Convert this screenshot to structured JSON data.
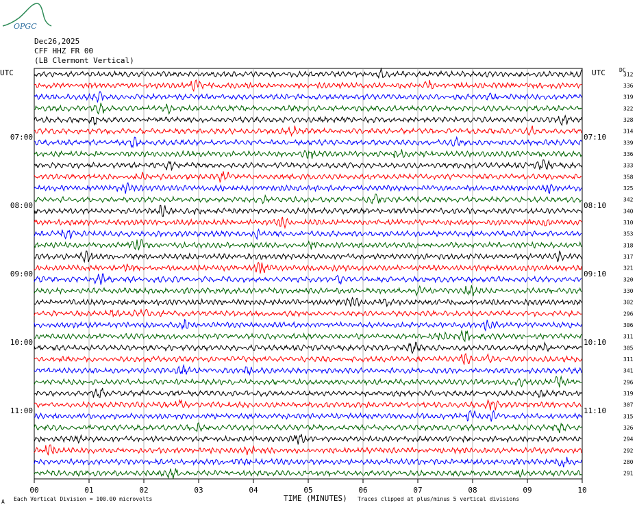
{
  "header": {
    "date": "Dec26,2025",
    "station": "CFF HHZ FR 00",
    "location": "(LB  Clermont Vertical)"
  },
  "logo": {
    "text": "OPGC",
    "color": "#2f6fa0",
    "mountain_color": "#2e8b57"
  },
  "axis": {
    "left_unit": "UTC",
    "right_unit": "UTC",
    "dc_label": "DC",
    "xlabel": "TIME (MINUTES)",
    "xticks": [
      "00",
      "01",
      "02",
      "03",
      "04",
      "05",
      "06",
      "07",
      "08",
      "09",
      "10"
    ]
  },
  "footer": {
    "scale_note": "Each Vertical Division =  100.00 microvolts",
    "clip_note": "Traces clipped at plus/minus 5 vertical divisions",
    "corner_mark": "A"
  },
  "chart_data": {
    "type": "line",
    "title": "",
    "xlabel": "TIME (MINUTES)",
    "xlim": [
      0,
      10
    ],
    "trace_colors": [
      "#000000",
      "#ff0000",
      "#0000ff",
      "#006400"
    ],
    "row_count": 36,
    "left_time_labels": [
      {
        "row": 6,
        "label": "07:00"
      },
      {
        "row": 12,
        "label": "08:00"
      },
      {
        "row": 18,
        "label": "09:00"
      },
      {
        "row": 24,
        "label": "10:00"
      },
      {
        "row": 30,
        "label": "11:00"
      }
    ],
    "right_time_labels": [
      {
        "row": 6,
        "label": "07:10"
      },
      {
        "row": 12,
        "label": "08:10"
      },
      {
        "row": 18,
        "label": "09:10"
      },
      {
        "row": 24,
        "label": "10:10"
      },
      {
        "row": 30,
        "label": "11:10"
      }
    ],
    "dc_values": [
      312,
      336,
      319,
      322,
      328,
      314,
      339,
      336,
      333,
      358,
      325,
      342,
      340,
      310,
      353,
      318,
      317,
      321,
      320,
      330,
      302,
      296,
      306,
      311,
      305,
      311,
      341,
      296,
      319,
      307,
      315,
      326,
      294,
      292,
      280,
      291
    ]
  }
}
